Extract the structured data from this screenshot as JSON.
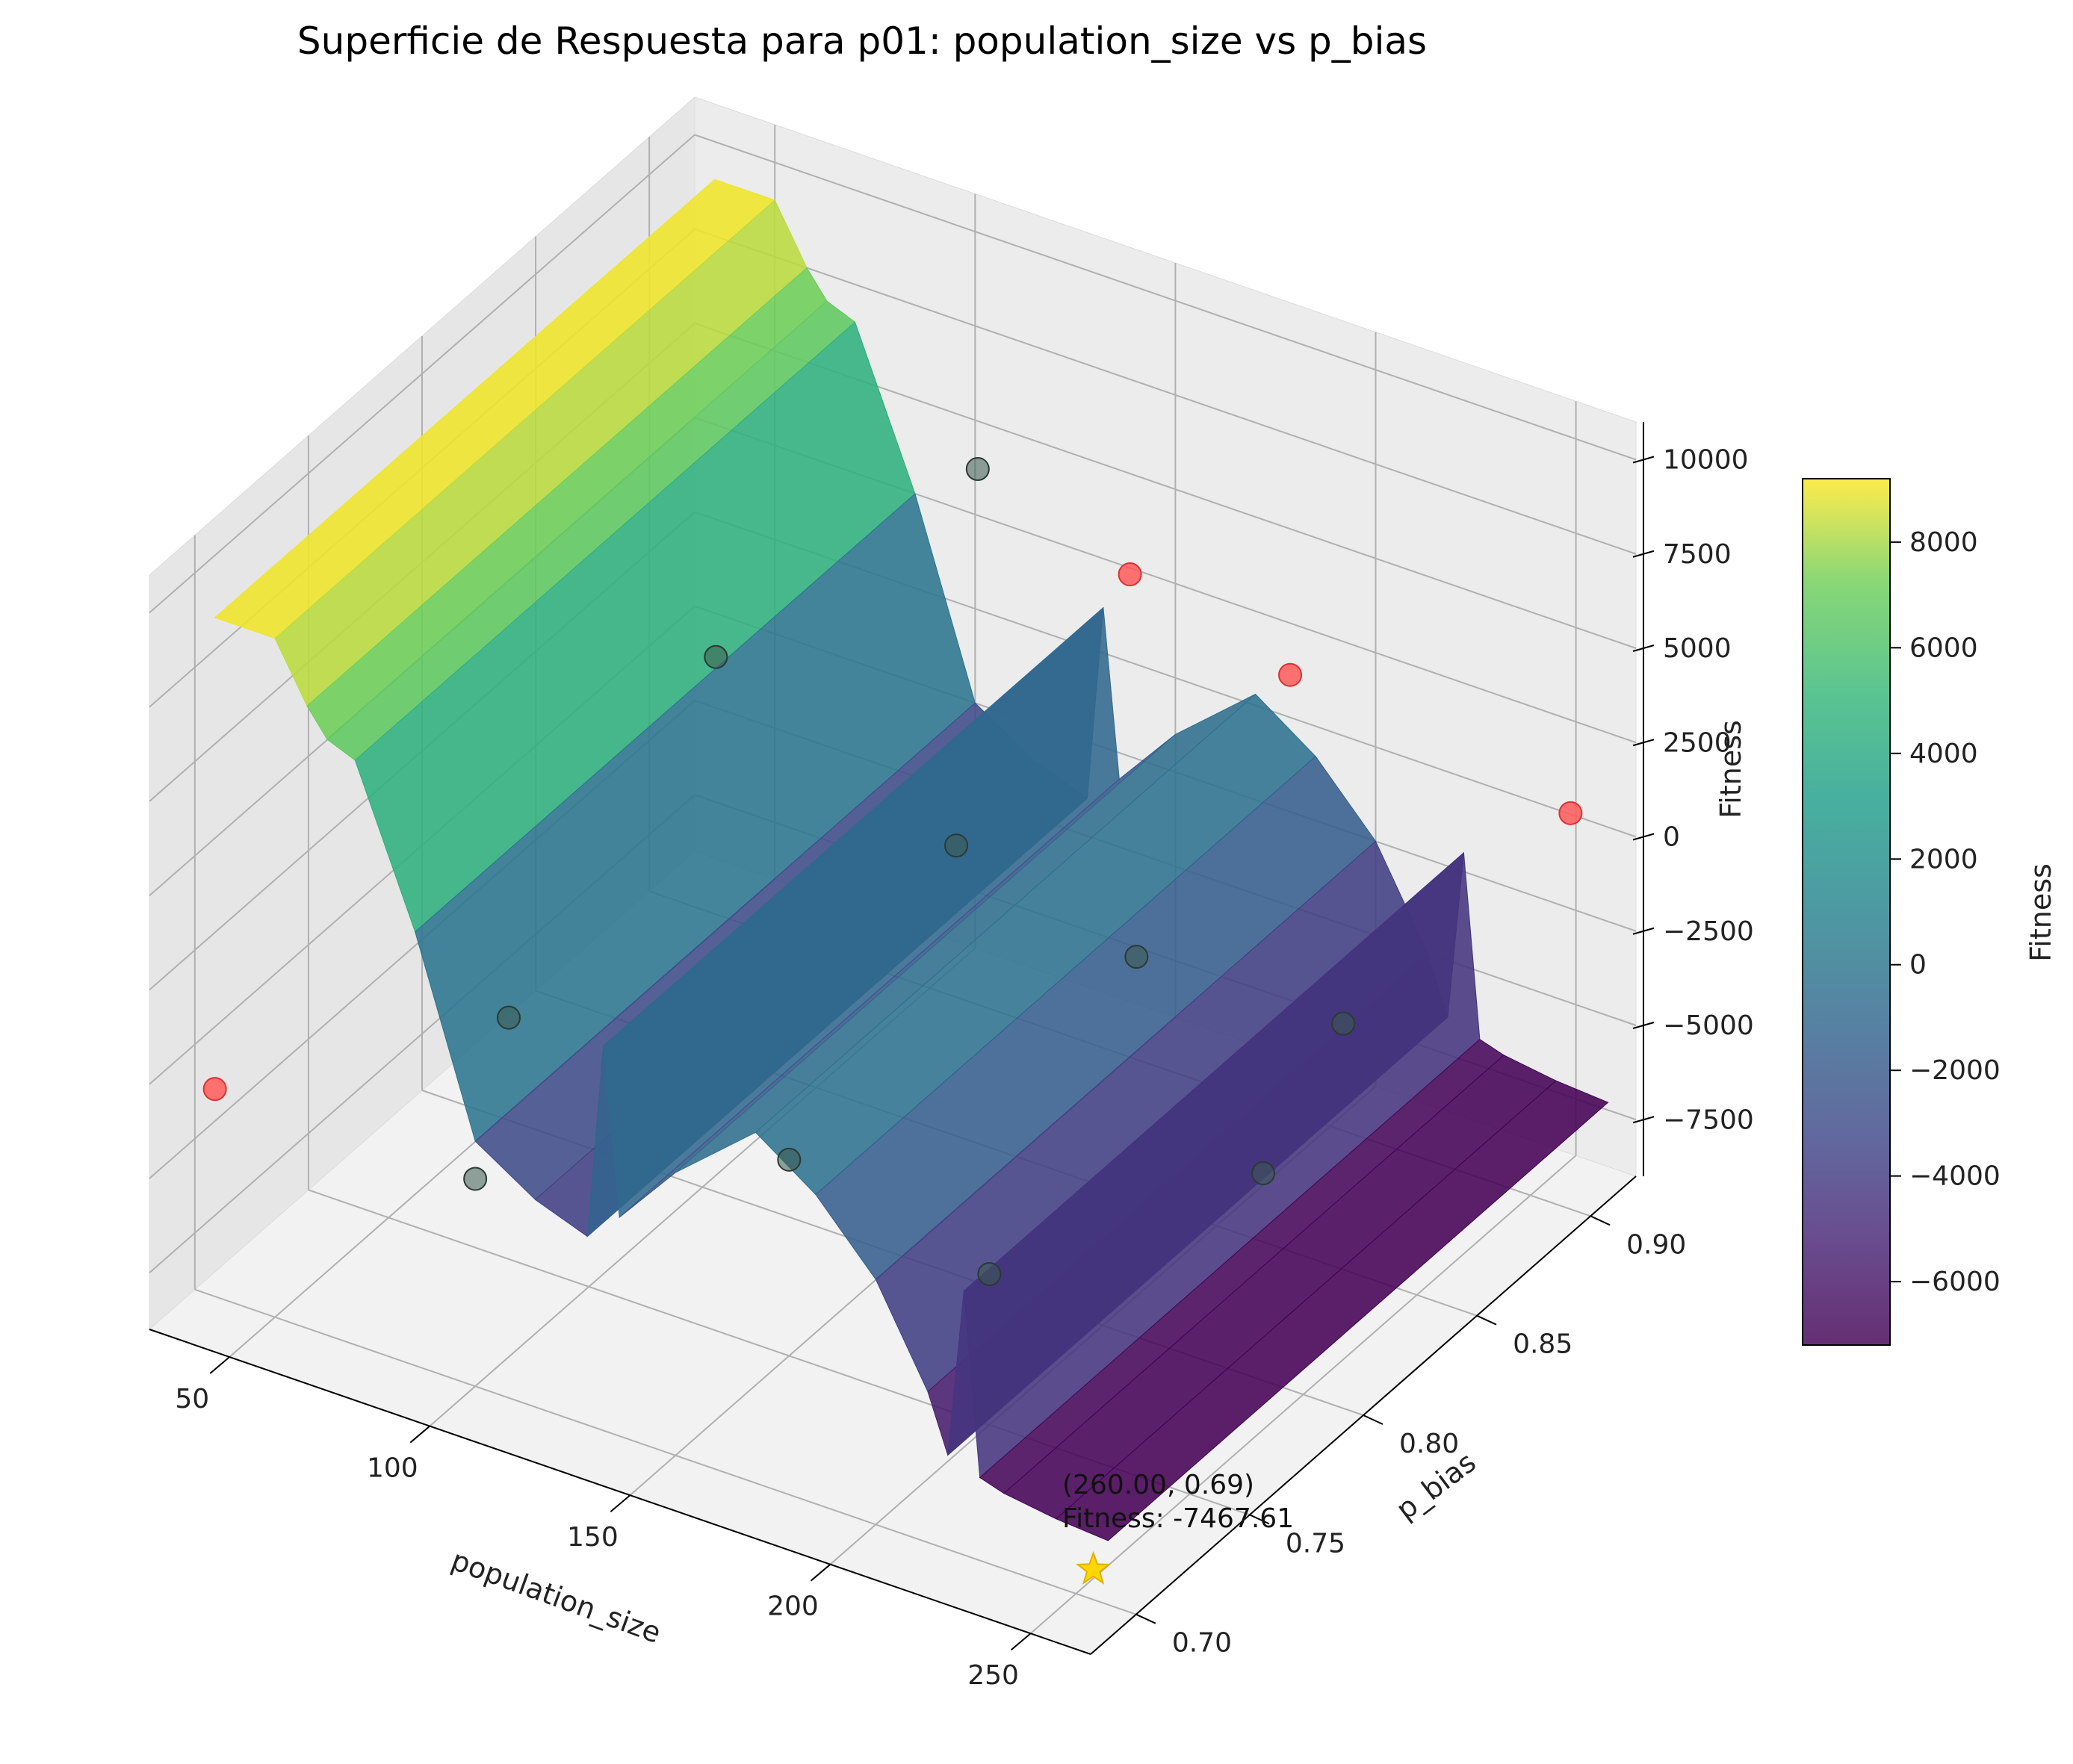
{
  "chart_data": {
    "type": "surface3d",
    "title": "Superficie de Respuesta para p01: population_size vs p_bias",
    "xlabel": "population_size",
    "ylabel": "p_bias",
    "zlabel": "Fitness",
    "x_ticks": [
      50,
      100,
      150,
      200,
      250
    ],
    "y_ticks": [
      "0.70",
      "0.75",
      "0.80",
      "0.85",
      "0.90"
    ],
    "z_ticks": [
      "−7500",
      "−5000",
      "−2500",
      "0",
      "2500",
      "5000",
      "7500",
      "10000"
    ],
    "xlim": [
      30,
      265
    ],
    "ylim": [
      0.68,
      0.92
    ],
    "zlim": [
      -9000,
      11000
    ],
    "colorbar": {
      "label": "Fitness",
      "ticks": [
        "−6000",
        "−4000",
        "−2000",
        "0",
        "2000",
        "4000",
        "6000",
        "8000"
      ],
      "range": [
        -7200,
        9200
      ],
      "colormap": "viridis"
    },
    "surface_profile": {
      "description": "fitness along population_size, roughly constant along p_bias",
      "x": [
        35,
        50,
        58,
        63,
        70,
        85,
        100,
        115,
        128,
        132,
        136,
        150,
        170,
        185,
        200,
        213,
        218,
        222,
        226,
        232,
        245,
        258
      ],
      "z": [
        9000,
        9000,
        7500,
        6800,
        6500,
        2500,
        -2500,
        -3500,
        -4000,
        1200,
        -3200,
        -1500,
        300,
        -800,
        -2500,
        -5000,
        -6500,
        -2000,
        -6800,
        -7000,
        -7200,
        -7300
      ]
    },
    "sample_points": [
      {
        "x": 35,
        "y": 0.7,
        "z": -3500,
        "color": "red"
      },
      {
        "x": 80,
        "y": 0.75,
        "z": -2600,
        "color": "gray"
      },
      {
        "x": 100,
        "y": 0.7,
        "z": -3500,
        "color": "gray"
      },
      {
        "x": 75,
        "y": 0.85,
        "z": 1500,
        "color": "gray"
      },
      {
        "x": 135,
        "y": 0.85,
        "z": -1300,
        "color": "gray"
      },
      {
        "x": 150,
        "y": 0.75,
        "z": -3800,
        "color": "gray"
      },
      {
        "x": 112,
        "y": 0.9,
        "z": 5200,
        "color": "gray"
      },
      {
        "x": 150,
        "y": 0.9,
        "z": 3800,
        "color": "red"
      },
      {
        "x": 180,
        "y": 0.85,
        "z": -2600,
        "color": "gray"
      },
      {
        "x": 200,
        "y": 0.75,
        "z": -5000,
        "color": "gray"
      },
      {
        "x": 190,
        "y": 0.9,
        "z": 2600,
        "color": "red"
      },
      {
        "x": 240,
        "y": 0.8,
        "z": -3500,
        "color": "gray"
      },
      {
        "x": 260,
        "y": 0.8,
        "z": 1200,
        "color": "gray"
      },
      {
        "x": 260,
        "y": 0.9,
        "z": 1500,
        "color": "red"
      }
    ],
    "best_point": {
      "x": 260.0,
      "y": 0.69,
      "z": -7467.61,
      "marker": "star",
      "color": "gold"
    },
    "annotation": {
      "line1": "(260.00, 0.69)",
      "line2": "Fitness: -7467.61"
    }
  }
}
